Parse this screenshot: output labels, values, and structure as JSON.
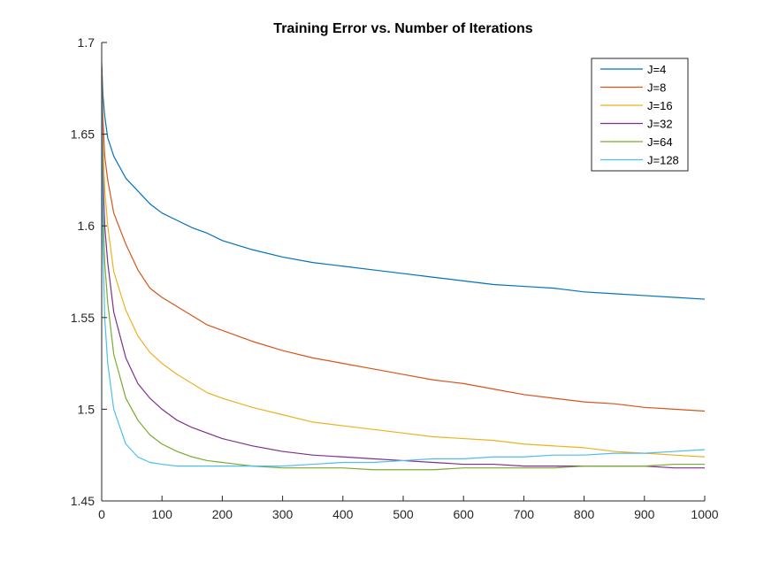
{
  "chart_data": {
    "type": "line",
    "title": "Training Error vs. Number of Iterations",
    "xlabel": "",
    "ylabel": "",
    "xlim": [
      0,
      1000
    ],
    "ylim": [
      1.45,
      1.7
    ],
    "xticks": [
      0,
      100,
      200,
      300,
      400,
      500,
      600,
      700,
      800,
      900,
      1000
    ],
    "xtick_labels": [
      "0",
      "100",
      "200",
      "300",
      "400",
      "500",
      "600",
      "700",
      "800",
      "900",
      "1000"
    ],
    "yticks": [
      1.45,
      1.5,
      1.55,
      1.6,
      1.65,
      1.7
    ],
    "ytick_labels": [
      "1.45",
      "1.5",
      "1.55",
      "1.6",
      "1.65",
      "1.7"
    ],
    "grid": false,
    "legend_position": "top-right",
    "series": [
      {
        "name": "J=4",
        "color": "#0072BD",
        "points": [
          [
            0,
            1.689
          ],
          [
            2,
            1.672
          ],
          [
            5,
            1.66
          ],
          [
            10,
            1.648
          ],
          [
            20,
            1.638
          ],
          [
            40,
            1.626
          ],
          [
            60,
            1.619
          ],
          [
            80,
            1.612
          ],
          [
            100,
            1.607
          ],
          [
            125,
            1.603
          ],
          [
            150,
            1.599
          ],
          [
            175,
            1.596
          ],
          [
            200,
            1.592
          ],
          [
            250,
            1.587
          ],
          [
            300,
            1.583
          ],
          [
            350,
            1.58
          ],
          [
            400,
            1.578
          ],
          [
            450,
            1.576
          ],
          [
            500,
            1.574
          ],
          [
            550,
            1.572
          ],
          [
            600,
            1.57
          ],
          [
            650,
            1.568
          ],
          [
            700,
            1.567
          ],
          [
            750,
            1.566
          ],
          [
            800,
            1.564
          ],
          [
            850,
            1.563
          ],
          [
            900,
            1.562
          ],
          [
            950,
            1.561
          ],
          [
            1000,
            1.56
          ]
        ]
      },
      {
        "name": "J=8",
        "color": "#D95319",
        "points": [
          [
            0,
            1.686
          ],
          [
            2,
            1.66
          ],
          [
            5,
            1.638
          ],
          [
            10,
            1.625
          ],
          [
            20,
            1.607
          ],
          [
            40,
            1.59
          ],
          [
            60,
            1.576
          ],
          [
            80,
            1.566
          ],
          [
            100,
            1.561
          ],
          [
            125,
            1.556
          ],
          [
            150,
            1.551
          ],
          [
            175,
            1.546
          ],
          [
            200,
            1.543
          ],
          [
            250,
            1.537
          ],
          [
            300,
            1.532
          ],
          [
            350,
            1.528
          ],
          [
            400,
            1.525
          ],
          [
            450,
            1.522
          ],
          [
            500,
            1.519
          ],
          [
            550,
            1.516
          ],
          [
            600,
            1.514
          ],
          [
            650,
            1.511
          ],
          [
            700,
            1.508
          ],
          [
            750,
            1.506
          ],
          [
            800,
            1.504
          ],
          [
            850,
            1.503
          ],
          [
            900,
            1.501
          ],
          [
            950,
            1.5
          ],
          [
            1000,
            1.499
          ]
        ]
      },
      {
        "name": "J=16",
        "color": "#EDB120",
        "points": [
          [
            0,
            1.684
          ],
          [
            2,
            1.645
          ],
          [
            5,
            1.62
          ],
          [
            10,
            1.6
          ],
          [
            20,
            1.575
          ],
          [
            40,
            1.554
          ],
          [
            60,
            1.54
          ],
          [
            80,
            1.531
          ],
          [
            100,
            1.525
          ],
          [
            125,
            1.519
          ],
          [
            150,
            1.514
          ],
          [
            175,
            1.509
          ],
          [
            200,
            1.506
          ],
          [
            250,
            1.501
          ],
          [
            300,
            1.497
          ],
          [
            350,
            1.493
          ],
          [
            400,
            1.491
          ],
          [
            450,
            1.489
          ],
          [
            500,
            1.487
          ],
          [
            550,
            1.485
          ],
          [
            600,
            1.484
          ],
          [
            650,
            1.483
          ],
          [
            700,
            1.481
          ],
          [
            750,
            1.48
          ],
          [
            800,
            1.479
          ],
          [
            850,
            1.477
          ],
          [
            900,
            1.476
          ],
          [
            950,
            1.475
          ],
          [
            1000,
            1.474
          ]
        ]
      },
      {
        "name": "J=32",
        "color": "#7E2F8E",
        "points": [
          [
            0,
            1.682
          ],
          [
            2,
            1.63
          ],
          [
            5,
            1.6
          ],
          [
            10,
            1.58
          ],
          [
            20,
            1.553
          ],
          [
            40,
            1.528
          ],
          [
            60,
            1.514
          ],
          [
            80,
            1.506
          ],
          [
            100,
            1.5
          ],
          [
            125,
            1.494
          ],
          [
            150,
            1.49
          ],
          [
            175,
            1.487
          ],
          [
            200,
            1.484
          ],
          [
            250,
            1.48
          ],
          [
            300,
            1.477
          ],
          [
            350,
            1.475
          ],
          [
            400,
            1.474
          ],
          [
            450,
            1.473
          ],
          [
            500,
            1.472
          ],
          [
            550,
            1.471
          ],
          [
            600,
            1.47
          ],
          [
            650,
            1.47
          ],
          [
            700,
            1.469
          ],
          [
            750,
            1.469
          ],
          [
            800,
            1.469
          ],
          [
            850,
            1.469
          ],
          [
            900,
            1.469
          ],
          [
            950,
            1.468
          ],
          [
            1000,
            1.468
          ]
        ]
      },
      {
        "name": "J=64",
        "color": "#77AC30",
        "points": [
          [
            0,
            1.68
          ],
          [
            2,
            1.61
          ],
          [
            5,
            1.58
          ],
          [
            10,
            1.558
          ],
          [
            20,
            1.53
          ],
          [
            40,
            1.506
          ],
          [
            60,
            1.494
          ],
          [
            80,
            1.486
          ],
          [
            100,
            1.481
          ],
          [
            125,
            1.477
          ],
          [
            150,
            1.474
          ],
          [
            175,
            1.472
          ],
          [
            200,
            1.471
          ],
          [
            250,
            1.469
          ],
          [
            300,
            1.468
          ],
          [
            350,
            1.468
          ],
          [
            400,
            1.468
          ],
          [
            450,
            1.467
          ],
          [
            500,
            1.467
          ],
          [
            550,
            1.467
          ],
          [
            600,
            1.468
          ],
          [
            650,
            1.468
          ],
          [
            700,
            1.468
          ],
          [
            750,
            1.468
          ],
          [
            800,
            1.469
          ],
          [
            850,
            1.469
          ],
          [
            900,
            1.469
          ],
          [
            950,
            1.47
          ],
          [
            1000,
            1.47
          ]
        ]
      },
      {
        "name": "J=128",
        "color": "#4DBEEE",
        "points": [
          [
            0,
            1.678
          ],
          [
            2,
            1.59
          ],
          [
            5,
            1.55
          ],
          [
            10,
            1.525
          ],
          [
            20,
            1.5
          ],
          [
            40,
            1.481
          ],
          [
            60,
            1.474
          ],
          [
            80,
            1.471
          ],
          [
            100,
            1.47
          ],
          [
            125,
            1.469
          ],
          [
            150,
            1.469
          ],
          [
            175,
            1.469
          ],
          [
            200,
            1.469
          ],
          [
            250,
            1.469
          ],
          [
            300,
            1.469
          ],
          [
            350,
            1.47
          ],
          [
            400,
            1.471
          ],
          [
            450,
            1.471
          ],
          [
            500,
            1.472
          ],
          [
            550,
            1.473
          ],
          [
            600,
            1.473
          ],
          [
            650,
            1.474
          ],
          [
            700,
            1.474
          ],
          [
            750,
            1.475
          ],
          [
            800,
            1.475
          ],
          [
            850,
            1.476
          ],
          [
            900,
            1.476
          ],
          [
            950,
            1.477
          ],
          [
            1000,
            1.478
          ]
        ]
      }
    ]
  }
}
